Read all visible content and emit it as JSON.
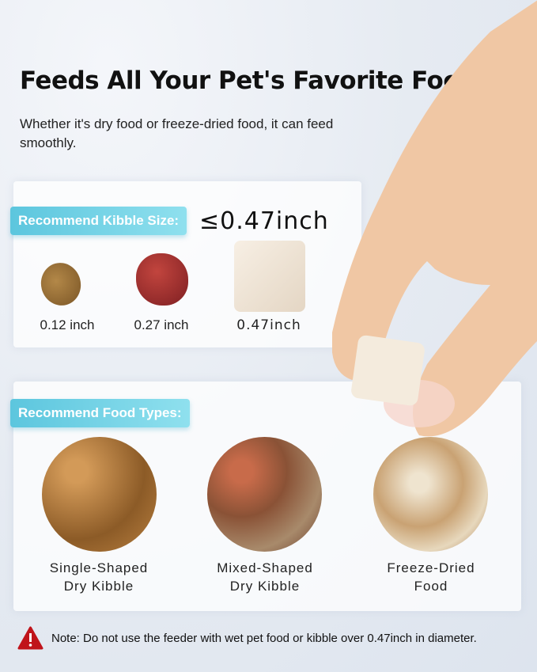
{
  "title": "Feeds All Your Pet's Favorite Foods",
  "subtitle": "Whether it's dry food or freeze-dried food, it can feed smoothly.",
  "kibble_size": {
    "tag": "Recommend Kibble Size:",
    "max": "≤0.47inch",
    "items": [
      {
        "label": "0.12 inch"
      },
      {
        "label": "0.27 inch"
      },
      {
        "label": "0.47inch"
      }
    ]
  },
  "food_types": {
    "tag": "Recommend Food Types:",
    "items": [
      {
        "label": "Single-Shaped\nDry Kibble"
      },
      {
        "label": "Mixed-Shaped\nDry Kibble"
      },
      {
        "label": "Freeze-Dried\nFood"
      }
    ]
  },
  "note": {
    "icon": "warning-icon",
    "text": "Note: Do not use the feeder with wet pet food or kibble over 0.47inch in diameter."
  },
  "colors": {
    "accent": "#6fd0e4",
    "warning": "#c0141b"
  }
}
